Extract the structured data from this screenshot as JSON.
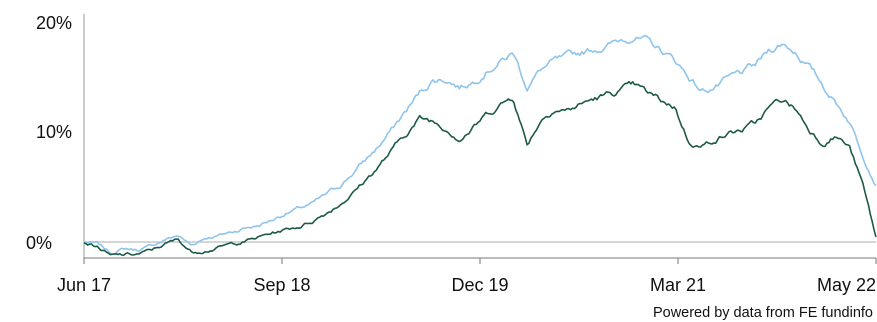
{
  "chart_data": {
    "type": "line",
    "title": "",
    "xlabel": "",
    "ylabel": "",
    "x_ticks": [
      "Jun 17",
      "Sep 18",
      "Dec 19",
      "Mar 21",
      "May 22"
    ],
    "y_ticks": [
      "0%",
      "10%",
      "20%"
    ],
    "ylim": [
      -1.5,
      20
    ],
    "xlim": [
      "2017-06",
      "2022-05"
    ],
    "grid": false,
    "legend": "none",
    "zero_line": true,
    "series": [
      {
        "color": "#8fc4ec",
        "x": [
          "2017-06",
          "2017-07",
          "2017-08",
          "2017-09",
          "2017-10",
          "2017-11",
          "2017-12",
          "2018-01",
          "2018-02",
          "2018-03",
          "2018-04",
          "2018-05",
          "2018-06",
          "2018-07",
          "2018-08",
          "2018-09",
          "2018-10",
          "2018-11",
          "2018-12",
          "2019-01",
          "2019-02",
          "2019-03",
          "2019-04",
          "2019-05",
          "2019-06",
          "2019-07",
          "2019-08",
          "2019-09",
          "2019-10",
          "2019-11",
          "2019-12",
          "2020-01",
          "2020-02",
          "2020-03",
          "2020-04",
          "2020-05",
          "2020-06",
          "2020-07",
          "2020-08",
          "2020-09",
          "2020-10",
          "2020-11",
          "2020-12",
          "2021-01",
          "2021-02",
          "2021-03",
          "2021-04",
          "2021-05",
          "2021-06",
          "2021-07",
          "2021-08",
          "2021-09",
          "2021-10",
          "2021-11",
          "2021-12",
          "2022-01",
          "2022-02",
          "2022-03",
          "2022-04",
          "2022-05"
        ],
        "values": [
          0,
          -0.2,
          -1.0,
          -0.6,
          -0.7,
          -0.4,
          0.2,
          0.6,
          -0.3,
          0.4,
          0.6,
          0.9,
          1.3,
          1.5,
          2.0,
          2.6,
          3.0,
          3.4,
          4.2,
          5.0,
          6.2,
          7.4,
          8.7,
          10.2,
          11.8,
          13.4,
          14.6,
          14.7,
          14.0,
          14.5,
          15.6,
          16.3,
          17.0,
          14.0,
          15.5,
          16.2,
          16.5,
          17.0,
          17.4,
          17.7,
          18.2,
          18.6,
          18.0,
          17.2,
          16.4,
          15.0,
          13.6,
          14.0,
          14.6,
          15.2,
          15.8,
          17.2,
          17.9,
          17.2,
          15.8,
          14.2,
          12.6,
          11.0,
          8.0,
          5.3
        ]
      },
      {
        "color": "#1d5a46",
        "x": [
          "2017-06",
          "2017-07",
          "2017-08",
          "2017-09",
          "2017-10",
          "2017-11",
          "2017-12",
          "2018-01",
          "2018-02",
          "2018-03",
          "2018-04",
          "2018-05",
          "2018-06",
          "2018-07",
          "2018-08",
          "2018-09",
          "2018-10",
          "2018-11",
          "2018-12",
          "2019-01",
          "2019-02",
          "2019-03",
          "2019-04",
          "2019-05",
          "2019-06",
          "2019-07",
          "2019-08",
          "2019-09",
          "2019-10",
          "2019-11",
          "2019-12",
          "2020-01",
          "2020-02",
          "2020-03",
          "2020-04",
          "2020-05",
          "2020-06",
          "2020-07",
          "2020-08",
          "2020-09",
          "2020-10",
          "2020-11",
          "2020-12",
          "2021-01",
          "2021-02",
          "2021-03",
          "2021-04",
          "2021-05",
          "2021-06",
          "2021-07",
          "2021-08",
          "2021-09",
          "2021-10",
          "2021-11",
          "2021-12",
          "2022-01",
          "2022-02",
          "2022-03",
          "2022-04",
          "2022-05"
        ],
        "values": [
          0,
          -0.4,
          -1.3,
          -1.2,
          -1.1,
          -0.8,
          -0.2,
          0.2,
          -0.9,
          -0.7,
          -0.5,
          -0.2,
          0.1,
          0.4,
          0.8,
          1.1,
          1.4,
          1.9,
          2.6,
          3.4,
          4.4,
          5.6,
          6.9,
          8.3,
          9.8,
          11.1,
          10.9,
          10.3,
          9.4,
          10.3,
          11.5,
          12.4,
          13.1,
          8.8,
          11.0,
          12.1,
          11.9,
          12.4,
          12.9,
          13.2,
          13.7,
          14.0,
          13.3,
          12.7,
          12.2,
          9.2,
          8.6,
          9.3,
          9.8,
          10.1,
          10.6,
          12.0,
          12.8,
          12.0,
          10.2,
          9.0,
          9.6,
          8.6,
          5.2,
          0.4
        ]
      }
    ]
  },
  "footer": {
    "credit": "Powered by data from FE fundinfo"
  }
}
